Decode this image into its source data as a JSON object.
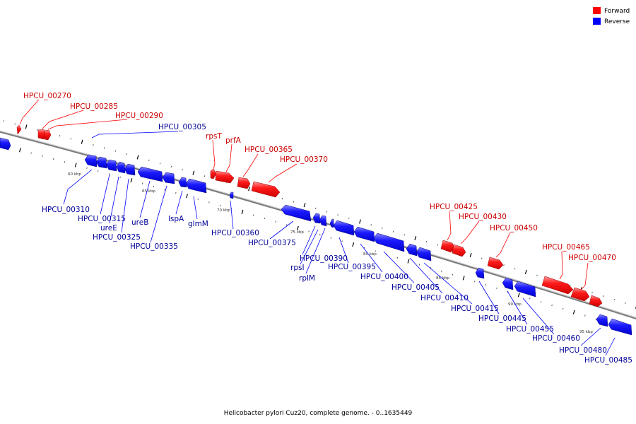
{
  "legend": [
    {
      "label": "Forward",
      "color": "#ff0000"
    },
    {
      "label": "Reverse",
      "color": "#0000ff"
    }
  ],
  "caption": "Helicobacter pylori Cuz20, complete genome. - 0..1635449",
  "strand_colors": {
    "forward": "#ff0000",
    "reverse": "#0000ff",
    "forward_text": "#cc0000",
    "reverse_text": "#000099",
    "backbone": "#888888"
  },
  "tick_labels": [
    "60 kbp",
    "65 kbp",
    "70 kbp",
    "75 kbp",
    "80 kbp",
    "85 kbp",
    "90 kbp",
    "95 kbp"
  ],
  "forward_genes": [
    "HPCU_00270",
    "HPCU_00285",
    "HPCU_00290",
    "rpsT",
    "prfA",
    "HPCU_00365",
    "HPCU_00370",
    "HPCU_00425",
    "HPCU_00430",
    "HPCU_00450",
    "HPCU_00465",
    "HPCU_00470"
  ],
  "reverse_genes": [
    "HPCU_00305",
    "HPCU_00310",
    "HPCU_00315",
    "ureE",
    "HPCU_00325",
    "ureB",
    "HPCU_00335",
    "lspA",
    "glmM",
    "HPCU_00360",
    "HPCU_00375",
    "HPCU_00390",
    "rpsI",
    "rplM",
    "HPCU_00395",
    "HPCU_00400",
    "HPCU_00405",
    "HPCU_00410",
    "HPCU_00415",
    "HPCU_00445",
    "HPCU_00455",
    "HPCU_00460",
    "HPCU_00480",
    "HPCU_00485"
  ]
}
